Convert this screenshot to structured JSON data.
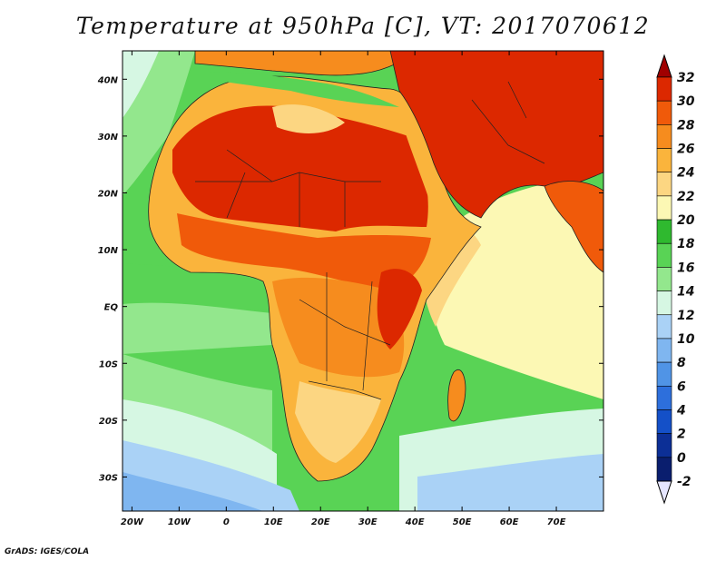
{
  "title": "Temperature at 950hPa [C], VT: 2017070612",
  "credit": "GrADS: IGES/COLA",
  "map": {
    "type": "filled-contour-map",
    "region": "Africa, Middle East, Arabian Peninsula and Arabian Sea",
    "projection": "lat-lon",
    "lon_range": [
      -22,
      80
    ],
    "lat_range": [
      -36,
      45
    ],
    "longitude_ticks": [
      "20W",
      "10W",
      "0",
      "10E",
      "20E",
      "30E",
      "40E",
      "50E",
      "60E",
      "70E"
    ],
    "latitude_ticks": [
      "40N",
      "30N",
      "20N",
      "10N",
      "EQ",
      "10S",
      "20S",
      "30S"
    ]
  },
  "colorbar": {
    "label_ticks": [
      "32",
      "30",
      "28",
      "26",
      "24",
      "22",
      "20",
      "18",
      "16",
      "14",
      "12",
      "10",
      "8",
      "6",
      "4",
      "2",
      "0",
      "-2"
    ],
    "colors": [
      "#a00000",
      "#dc2800",
      "#f05a0a",
      "#f68c1e",
      "#fab43c",
      "#fcd682",
      "#fcf8b4",
      "#2fb92f",
      "#59d355",
      "#93e78d",
      "#d6f7e3",
      "#aad2f6",
      "#7fb6f0",
      "#5094e6",
      "#2d6fdc",
      "#1450c8",
      "#0c2f96",
      "#0a1e6e",
      "#e6e6ff"
    ],
    "top_color": "#a00000",
    "bottom_color": "#e6e6ff"
  },
  "palette": {
    "ocean_cool": "#93e78d",
    "ocean_south": "#7fb6f0",
    "arabian_sea": "#fcf8b4",
    "sahara": "#dc2800",
    "sahel": "#f05a0a",
    "coast_mild": "#fab43c",
    "med_sea": "#fcd682"
  }
}
